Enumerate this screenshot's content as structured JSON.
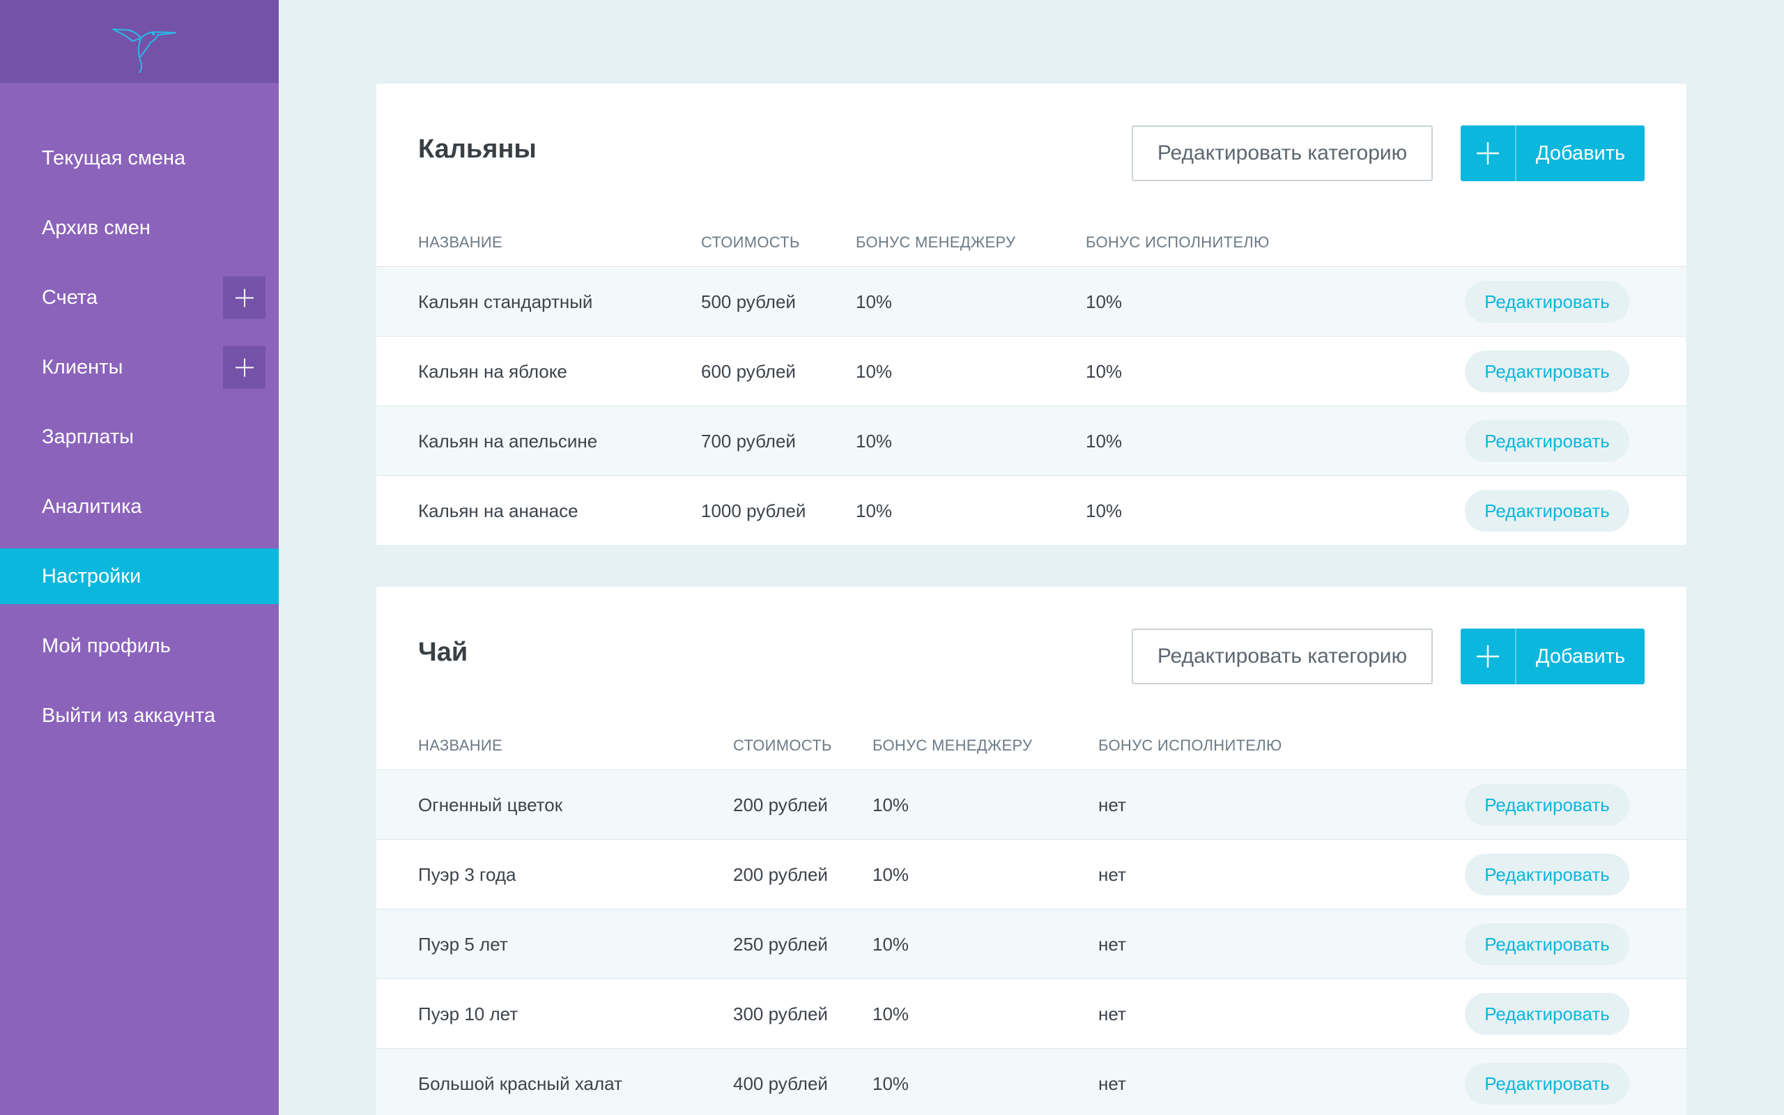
{
  "sidebar": {
    "items": [
      {
        "label": "Текущая смена",
        "has_add": false,
        "active": false
      },
      {
        "label": "Архив смен",
        "has_add": false,
        "active": false
      },
      {
        "label": "Счета",
        "has_add": true,
        "active": false
      },
      {
        "label": "Клиенты",
        "has_add": true,
        "active": false
      },
      {
        "label": "Зарплаты",
        "has_add": false,
        "active": false
      },
      {
        "label": "Аналитика",
        "has_add": false,
        "active": false
      },
      {
        "label": "Настройки",
        "has_add": false,
        "active": true
      },
      {
        "label": "Мой профиль",
        "has_add": false,
        "active": false
      },
      {
        "label": "Выйти из аккаунта",
        "has_add": false,
        "active": false
      }
    ]
  },
  "common": {
    "edit_category_label": "Редактировать категорию",
    "add_label": "Добавить",
    "row_edit_label": "Редактировать"
  },
  "categories": [
    {
      "title": "Кальяны",
      "headers": {
        "name": "НАЗВАНИЕ",
        "price": "СТОИМОСТЬ",
        "manager_bonus": "БОНУС МЕНЕДЖЕРУ",
        "performer_bonus": "БОНУС ИСПОЛНИТЕЛЮ"
      },
      "rows": [
        {
          "name": "Кальян стандартный",
          "price": "500 рублей",
          "manager_bonus": "10%",
          "performer_bonus": "10%"
        },
        {
          "name": "Кальян на яблоке",
          "price": "600 рублей",
          "manager_bonus": "10%",
          "performer_bonus": "10%"
        },
        {
          "name": "Кальян на апельсине",
          "price": "700 рублей",
          "manager_bonus": "10%",
          "performer_bonus": "10%"
        },
        {
          "name": "Кальян на ананасе",
          "price": "1000 рублей",
          "manager_bonus": "10%",
          "performer_bonus": "10%"
        }
      ]
    },
    {
      "title": "Чай",
      "headers": {
        "name": "НАЗВАНИЕ",
        "price": "СТОИМОСТЬ",
        "manager_bonus": "БОНУС МЕНЕДЖЕРУ",
        "performer_bonus": "БОНУС ИСПОЛНИТЕЛЮ"
      },
      "rows": [
        {
          "name": "Огненный цветок",
          "price": "200 рублей",
          "manager_bonus": "10%",
          "performer_bonus": "нет"
        },
        {
          "name": "Пуэр 3 года",
          "price": "200 рублей",
          "manager_bonus": "10%",
          "performer_bonus": "нет"
        },
        {
          "name": "Пуэр 5 лет",
          "price": "250 рублей",
          "manager_bonus": "10%",
          "performer_bonus": "нет"
        },
        {
          "name": "Пуэр 10 лет",
          "price": "300 рублей",
          "manager_bonus": "10%",
          "performer_bonus": "нет"
        },
        {
          "name": "Большой красный халат",
          "price": "400 рублей",
          "manager_bonus": "10%",
          "performer_bonus": "нет"
        }
      ]
    }
  ],
  "icons": {
    "logo": "hummingbird-logo-icon",
    "plus": "plus-icon"
  },
  "colors": {
    "sidebar": "#8b63bb",
    "sidebar_dark": "#7452a8",
    "accent": "#0bb7dd",
    "background": "#e6f1f3"
  }
}
